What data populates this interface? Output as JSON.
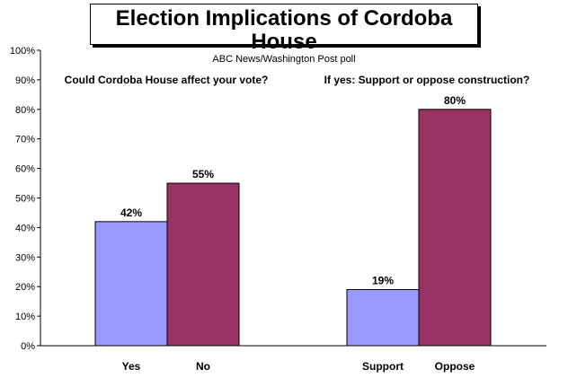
{
  "chart_data": {
    "type": "bar",
    "title": "Election Implications of Cordoba House",
    "subtitle": "ABC News/Washington Post poll",
    "ylim": [
      0,
      100
    ],
    "yticks": [
      "0%",
      "10%",
      "20%",
      "30%",
      "40%",
      "50%",
      "60%",
      "70%",
      "80%",
      "90%",
      "100%"
    ],
    "grid": false,
    "groups": [
      {
        "question": "Could Cordoba House affect your vote?",
        "categories": [
          "Yes",
          "No"
        ],
        "values": [
          42,
          55
        ],
        "value_labels": [
          "42%",
          "55%"
        ],
        "colors": [
          "#9999ff",
          "#993366"
        ]
      },
      {
        "question": "If yes: Support or oppose construction?",
        "categories": [
          "Support",
          "Oppose"
        ],
        "values": [
          19,
          80
        ],
        "value_labels": [
          "19%",
          "80%"
        ],
        "colors": [
          "#9999ff",
          "#993366"
        ]
      }
    ]
  }
}
